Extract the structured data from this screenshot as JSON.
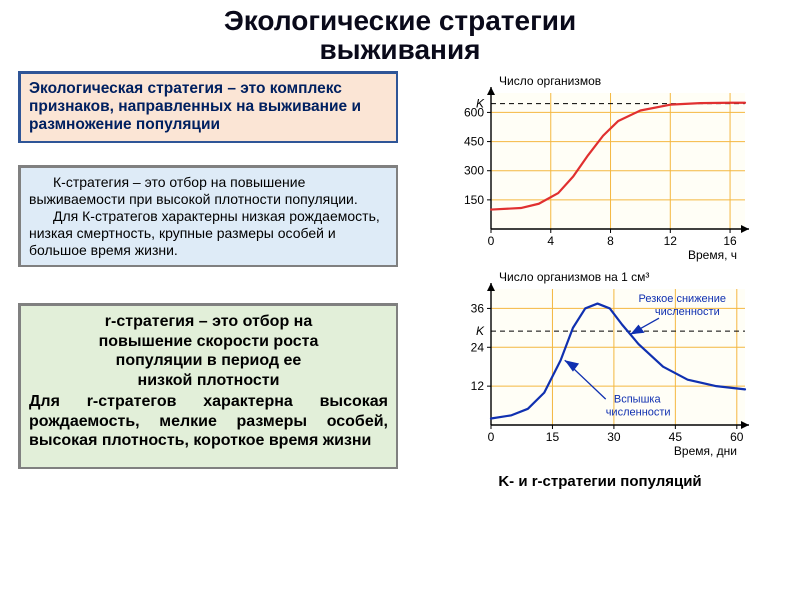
{
  "title": {
    "line1": "Экологические стратегии",
    "line2": "выживания"
  },
  "box_definition": "Экологическая стратегия – это комплекс признаков, направленных на выживание и размножение популяции",
  "box_k": {
    "p1": "К-стратегия – это отбор на повышение выживаемости при высокой плотности популяции.",
    "p2": "Для К-стратегов характерны  низкая рождаемость, низкая смертность, крупные размеры особей и большое время жизни."
  },
  "box_r": {
    "line1": "r-стратегия – это отбор на",
    "line2": "повышение скорости роста",
    "line3": "популяции в период ее",
    "line4": "низкой плотности",
    "line5": "Для r-стратегов характерна высокая рождаемость, мелкие размеры особей, высокая плотность, короткое время жизни"
  },
  "chart1": {
    "y_title": "Число организмов",
    "x_title": "Время, ч",
    "x_ticks": [
      "0",
      "4",
      "8",
      "12",
      "16"
    ],
    "y_ticks": [
      "150",
      "300",
      "450",
      "600"
    ],
    "k_label": "K",
    "xrange": [
      0,
      17
    ],
    "yrange": [
      0,
      700
    ],
    "k_value": 645,
    "points": [
      [
        0,
        100
      ],
      [
        2,
        108
      ],
      [
        3.2,
        130
      ],
      [
        4.5,
        185
      ],
      [
        5.5,
        270
      ],
      [
        6.5,
        380
      ],
      [
        7.5,
        480
      ],
      [
        8.5,
        555
      ],
      [
        10,
        610
      ],
      [
        12,
        640
      ],
      [
        14,
        648
      ],
      [
        16,
        650
      ],
      [
        17,
        650
      ]
    ],
    "colors": {
      "line": "#e03030",
      "axes": "#000000",
      "grid": "#f4b740",
      "background": "#fffef6"
    },
    "line_width": 2.2
  },
  "chart2": {
    "y_title": "Число организмов на 1 см³",
    "x_title": "Время, дни",
    "x_ticks": [
      "0",
      "15",
      "30",
      "45",
      "60"
    ],
    "y_ticks": [
      "12",
      "24",
      "36"
    ],
    "k_label": "K",
    "xrange": [
      0,
      62
    ],
    "yrange": [
      0,
      42
    ],
    "k_value": 29,
    "annot_up": "Вспышка",
    "annot_up2": "численности",
    "annot_down": "Резкое снижение",
    "annot_down2": "численности",
    "points": [
      [
        0,
        2
      ],
      [
        5,
        3
      ],
      [
        9,
        5
      ],
      [
        13,
        10
      ],
      [
        17,
        20
      ],
      [
        20,
        30
      ],
      [
        23,
        36
      ],
      [
        26,
        37.5
      ],
      [
        29,
        36
      ],
      [
        32,
        31
      ],
      [
        36,
        25
      ],
      [
        42,
        18
      ],
      [
        48,
        14
      ],
      [
        55,
        12
      ],
      [
        62,
        11
      ]
    ],
    "colors": {
      "line": "#1030b0",
      "axes": "#000000",
      "grid": "#f4b740",
      "background": "#fffef6"
    },
    "line_width": 2.2
  },
  "charts_caption": "K- и r-стратегии популяций"
}
